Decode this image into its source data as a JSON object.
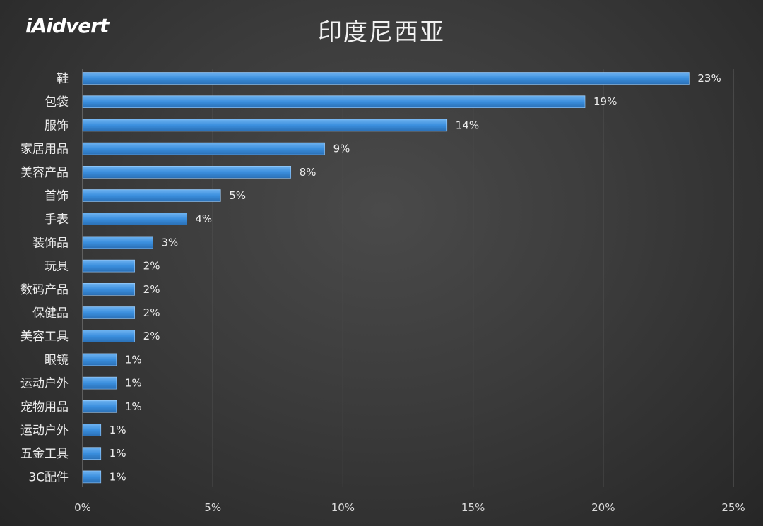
{
  "brand": {
    "logo_text": "iAidvert"
  },
  "chart_data": {
    "type": "bar",
    "orientation": "horizontal",
    "title": "印度尼西亚",
    "categories": [
      "鞋",
      "包袋",
      "服饰",
      "家居用品",
      "美容产品",
      "首饰",
      "手表",
      "装饰品",
      "玩具",
      "数码产品",
      "保健品",
      "美容工具",
      "眼镜",
      "运动户外",
      "宠物用品",
      "运动户外",
      "五金工具",
      "3C配件"
    ],
    "values": [
      23.3,
      19.3,
      14,
      9.3,
      8,
      5.3,
      4,
      2.7,
      2,
      2,
      2,
      2,
      1.3,
      1.3,
      1.3,
      0.7,
      0.7,
      0.7
    ],
    "value_labels": [
      "23%",
      "19%",
      "14%",
      "9%",
      "8%",
      "5%",
      "4%",
      "3%",
      "2%",
      "2%",
      "2%",
      "2%",
      "1%",
      "1%",
      "1%",
      "1%",
      "1%",
      "1%"
    ],
    "xlim": [
      0,
      25
    ],
    "x_ticks": [
      0,
      5,
      10,
      15,
      20,
      25
    ],
    "x_tick_labels": [
      "0%",
      "5%",
      "10%",
      "15%",
      "20%",
      "25%"
    ],
    "grid": "vertical",
    "bar_color": "#3b8fde",
    "xlabel": "",
    "ylabel": ""
  }
}
